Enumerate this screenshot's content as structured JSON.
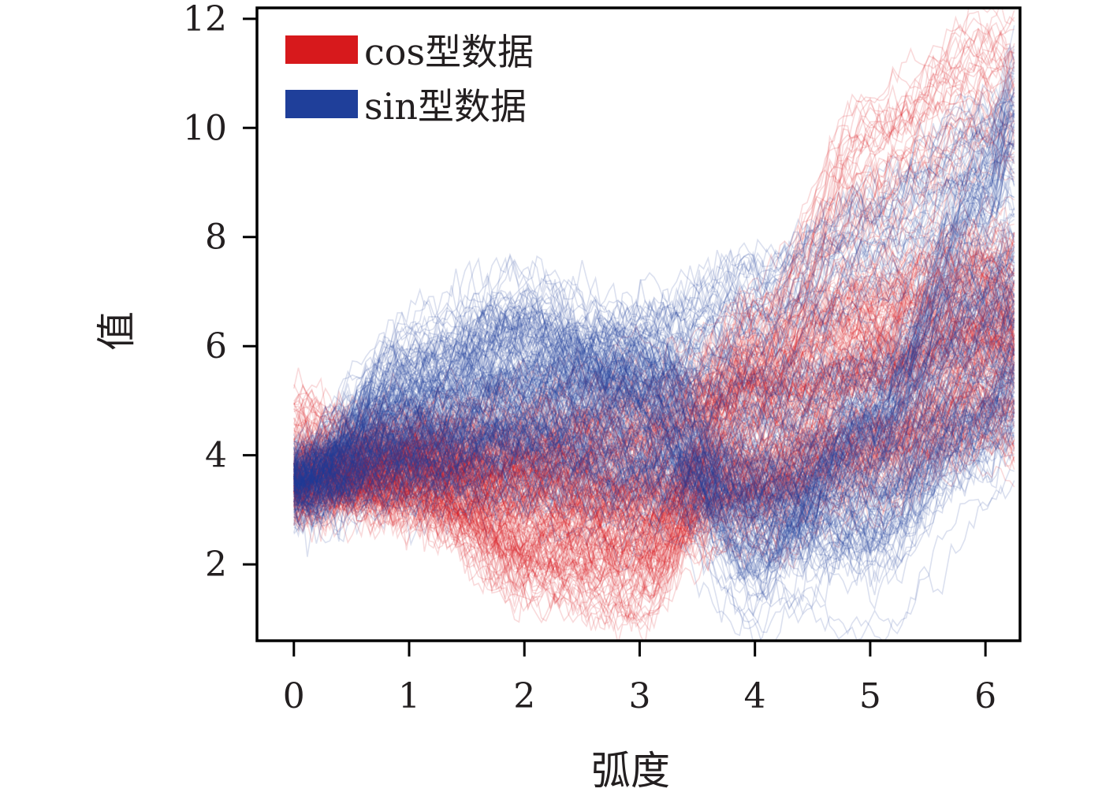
{
  "chart_data": {
    "type": "line",
    "title": "",
    "xlabel": "弧度",
    "ylabel": "值",
    "xlim": [
      -0.32,
      6.3
    ],
    "ylim": [
      0.6,
      12.2
    ],
    "x_ticks": [
      0,
      1,
      2,
      3,
      4,
      5,
      6
    ],
    "y_ticks": [
      2,
      4,
      6,
      8,
      10,
      12
    ],
    "grid": false,
    "legend_position": "top-left",
    "x_range": [
      0,
      6.25
    ],
    "series": [
      {
        "name": "cos型数据",
        "color": "#d7191c",
        "mean_curves": [
          {
            "x": [
              0,
              1,
              2,
              3,
              4,
              5,
              6,
              6.25
            ],
            "y": [
              3.5,
              3.3,
              2.4,
              2.3,
              3.6,
              5.6,
              6.6,
              6.3
            ]
          },
          {
            "x": [
              0,
              1,
              2,
              3,
              4,
              5,
              6,
              6.25
            ],
            "y": [
              3.5,
              4.1,
              4.2,
              4.4,
              5.3,
              6.9,
              7.5,
              7.2
            ]
          },
          {
            "x": [
              0,
              1,
              2,
              3,
              4,
              5,
              6,
              6.25
            ],
            "y": [
              3.5,
              4.0,
              3.4,
              3.0,
              3.1,
              3.9,
              5.4,
              5.6
            ]
          },
          {
            "x": [
              0,
              1,
              2,
              3,
              4,
              5,
              6,
              6.25
            ],
            "y": [
              3.5,
              3.5,
              3.4,
              3.3,
              3.6,
              4.2,
              4.6,
              4.6
            ]
          },
          {
            "x": [
              0,
              1,
              2,
              3,
              4,
              5,
              6,
              6.25
            ],
            "y": [
              3.5,
              3.9,
              4.3,
              4.7,
              5.3,
              5.9,
              6.4,
              6.5
            ]
          },
          {
            "x": [
              0,
              1,
              2,
              3,
              4,
              5,
              6,
              6.25
            ],
            "y": [
              4.5,
              3.7,
              2.0,
              1.6,
              6.0,
              9.3,
              10.7,
              10.5
            ]
          }
        ],
        "noise_std": 0.35,
        "samples_per_curve": 40
      },
      {
        "name": "sin型数据",
        "color": "#1f3f9a",
        "mean_curves": [
          {
            "x": [
              0,
              1,
              2,
              3,
              4,
              5,
              6,
              6.25
            ],
            "y": [
              3.5,
              5.2,
              6.0,
              5.4,
              2.8,
              2.4,
              4.6,
              5.4
            ]
          },
          {
            "x": [
              0,
              1,
              2,
              3,
              4,
              5,
              6,
              6.25
            ],
            "y": [
              3.5,
              4.7,
              5.1,
              5.4,
              5.0,
              5.4,
              7.0,
              7.4
            ]
          },
          {
            "x": [
              0,
              1,
              2,
              3,
              4,
              5,
              6,
              6.25
            ],
            "y": [
              3.5,
              4.2,
              4.5,
              4.2,
              3.6,
              3.6,
              4.8,
              5.2
            ]
          },
          {
            "x": [
              0,
              1,
              2,
              3,
              4,
              5,
              6,
              6.25
            ],
            "y": [
              3.5,
              4.1,
              4.9,
              5.8,
              6.6,
              7.8,
              9.3,
              9.6
            ]
          },
          {
            "x": [
              0,
              1,
              2,
              3,
              4,
              5,
              6,
              6.25
            ],
            "y": [
              3.5,
              3.8,
              3.8,
              3.5,
              3.4,
              4.3,
              6.2,
              6.4
            ]
          },
          {
            "x": [
              0,
              1,
              2,
              3,
              4,
              5,
              6,
              6.25
            ],
            "y": [
              3.6,
              5.4,
              6.2,
              5.0,
              2.0,
              4.4,
              8.7,
              10.3
            ]
          }
        ],
        "noise_std": 0.35,
        "samples_per_curve": 40
      }
    ]
  }
}
